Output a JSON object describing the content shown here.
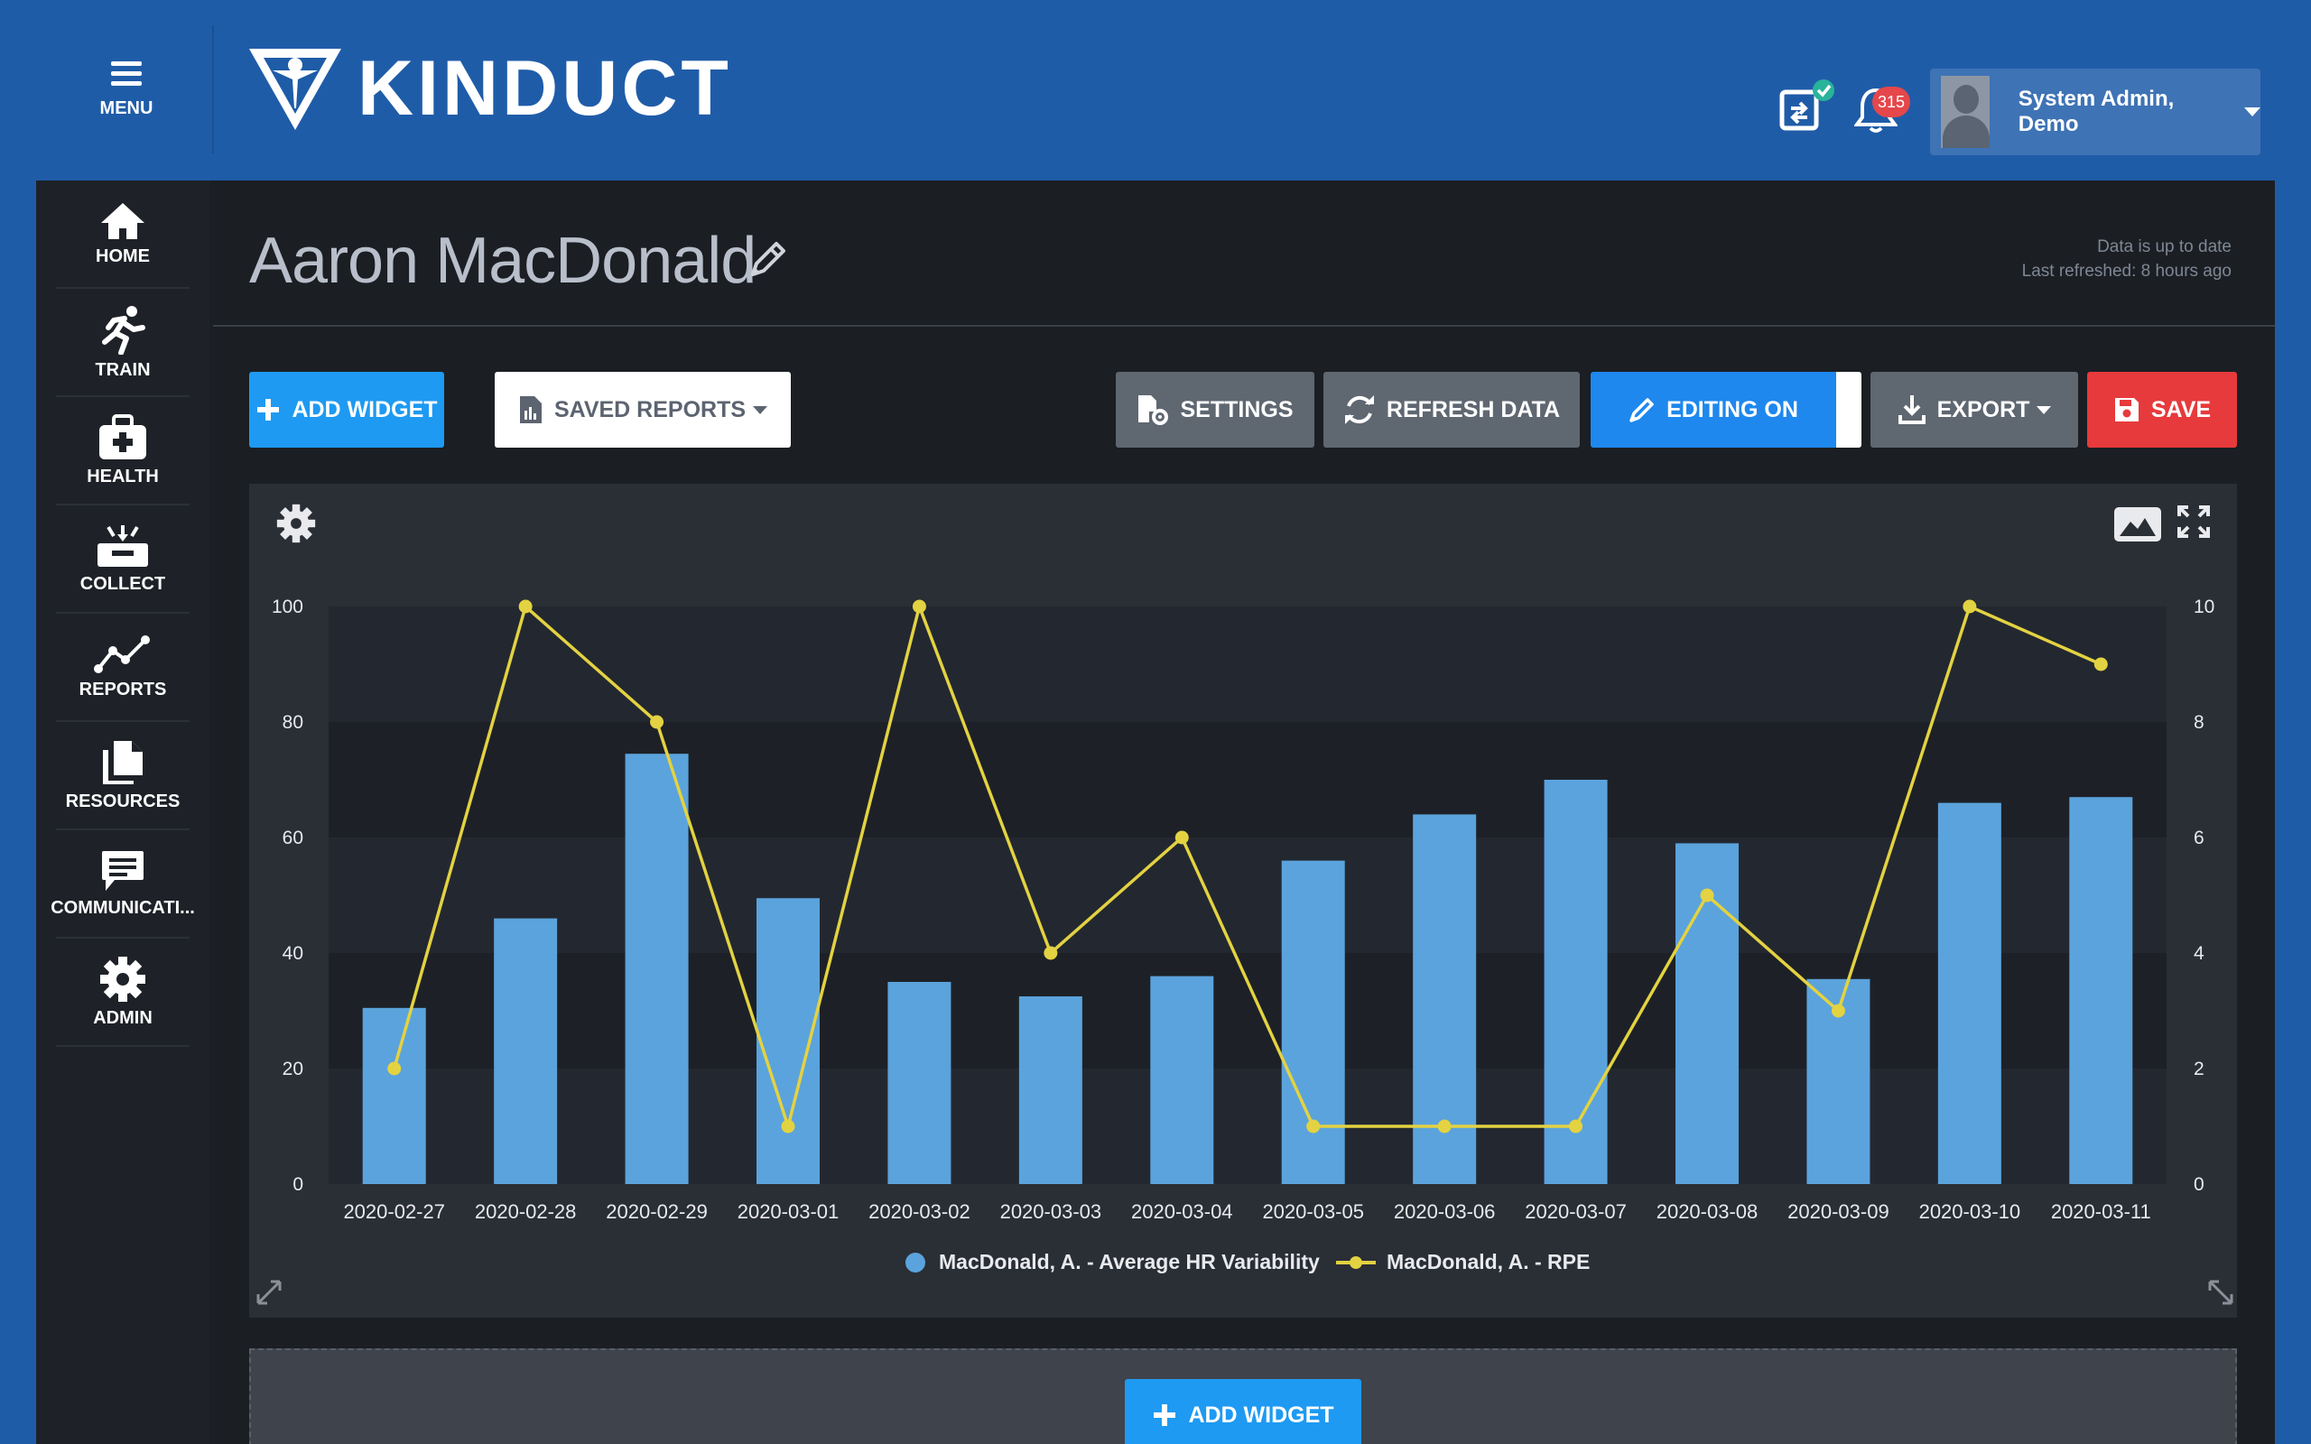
{
  "header": {
    "menu_label": "MENU",
    "logo_text": "KINDUCT",
    "notification_count": "315",
    "user_name": "System Admin, Demo"
  },
  "sidebar": {
    "items": [
      {
        "label": "HOME",
        "icon": "home-icon"
      },
      {
        "label": "TRAIN",
        "icon": "runner-icon"
      },
      {
        "label": "HEALTH",
        "icon": "medkit-icon"
      },
      {
        "label": "COLLECT",
        "icon": "inbox-icon"
      },
      {
        "label": "REPORTS",
        "icon": "line-chart-icon"
      },
      {
        "label": "RESOURCES",
        "icon": "files-icon"
      },
      {
        "label": "COMMUNICATI...",
        "icon": "message-icon"
      },
      {
        "label": "ADMIN",
        "icon": "gear-icon"
      }
    ]
  },
  "page": {
    "title": "Aaron MacDonald",
    "status_line1": "Data is up to date",
    "status_line2": "Last refreshed: 8 hours ago"
  },
  "toolbar": {
    "add_widget": "ADD WIDGET",
    "saved_reports": "SAVED REPORTS",
    "settings": "SETTINGS",
    "refresh_data": "REFRESH DATA",
    "editing_on": "EDITING ON",
    "export": "EXPORT",
    "save": "SAVE"
  },
  "drop_zone": {
    "add_widget": "ADD WIDGET"
  },
  "colors": {
    "header_blue": "#1f5ca8",
    "bar_blue": "#5ba3dc",
    "line_yellow": "#e3d241",
    "save_red": "#e73a3c",
    "accent_blue": "#1e9af2"
  },
  "chart_data": {
    "type": "bar",
    "categories": [
      "2020-02-27",
      "2020-02-28",
      "2020-02-29",
      "2020-03-01",
      "2020-03-02",
      "2020-03-03",
      "2020-03-04",
      "2020-03-05",
      "2020-03-06",
      "2020-03-07",
      "2020-03-08",
      "2020-03-09",
      "2020-03-10",
      "2020-03-11"
    ],
    "series": [
      {
        "name": "MacDonald, A. - Average HR Variability",
        "type": "bar",
        "axis": "left",
        "color": "#5ba3dc",
        "values": [
          30.5,
          46,
          74.5,
          49.5,
          35,
          32.5,
          36,
          56,
          64,
          70,
          59,
          35.5,
          66,
          67
        ]
      },
      {
        "name": "MacDonald, A. - RPE",
        "type": "line",
        "axis": "right",
        "color": "#e3d241",
        "values": [
          2,
          10,
          8,
          1,
          10,
          4,
          6,
          1,
          1,
          1,
          5,
          3,
          10,
          9
        ]
      }
    ],
    "y_left": {
      "min": 0,
      "max": 100,
      "ticks": [
        0,
        20,
        40,
        60,
        80,
        100
      ]
    },
    "y_right": {
      "min": 0,
      "max": 10,
      "ticks": [
        0,
        2,
        4,
        6,
        8,
        10
      ]
    },
    "legend_position": "bottom-center",
    "grid": "alternating bands"
  }
}
